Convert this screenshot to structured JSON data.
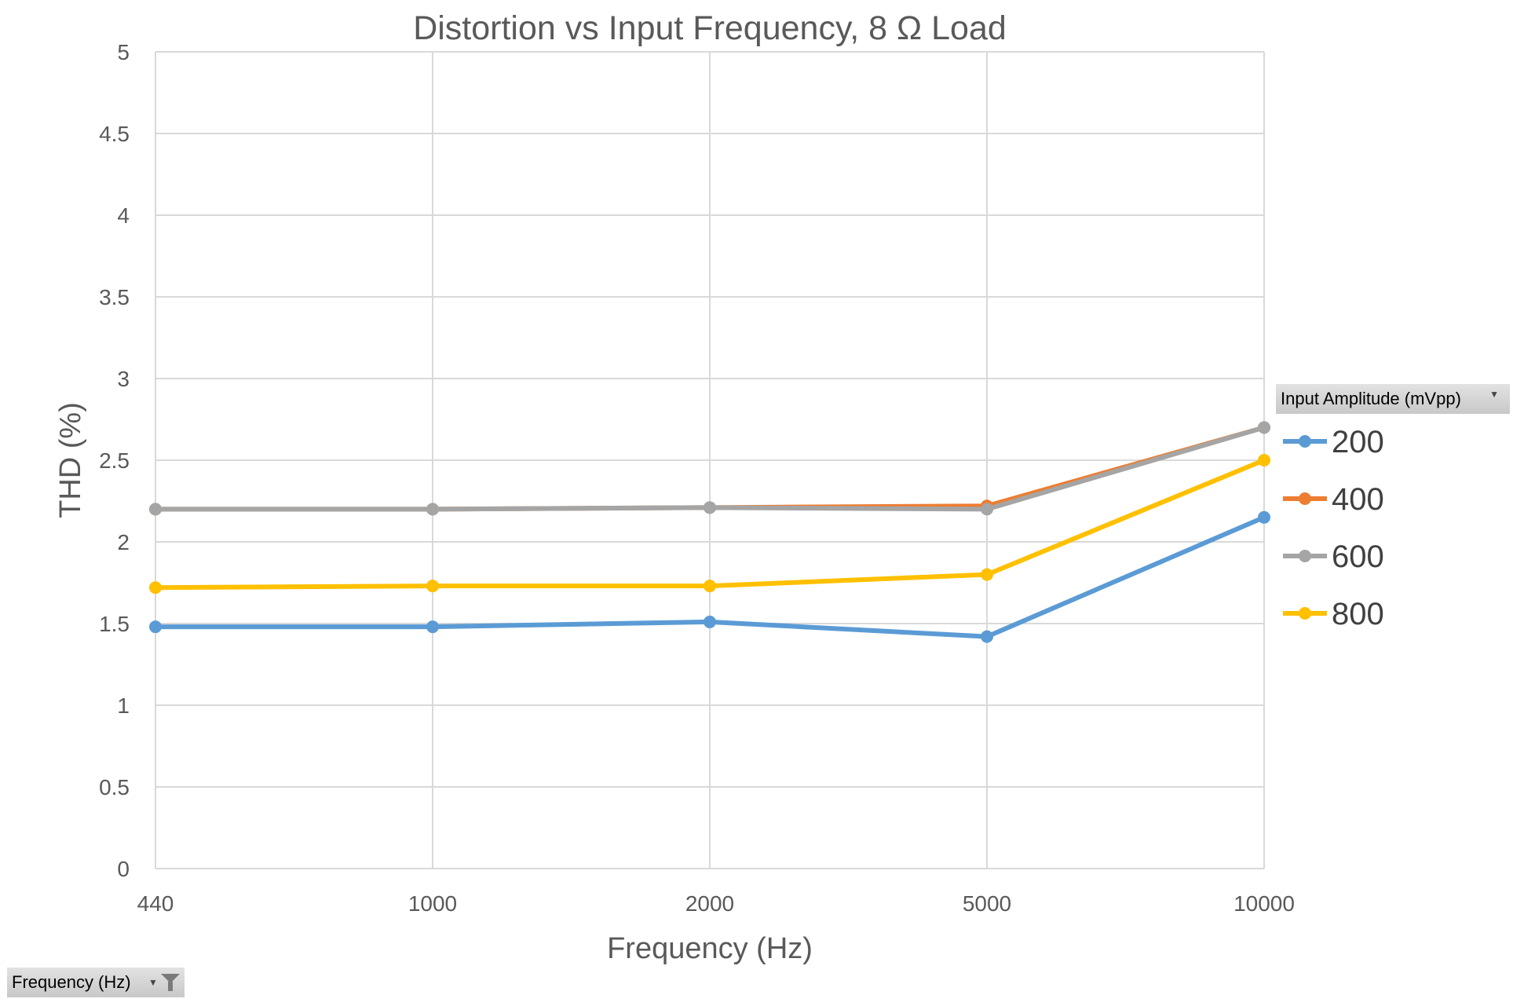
{
  "chart_data": {
    "type": "line",
    "title": "Distortion vs Input Frequency, 8 Ω Load",
    "xlabel": "Frequency (Hz)",
    "ylabel": "THD (%)",
    "categories": [
      "440",
      "1000",
      "2000",
      "5000",
      "10000"
    ],
    "ylim": [
      0,
      5
    ],
    "yticks": [
      "0",
      "0.5",
      "1",
      "1.5",
      "2",
      "2.5",
      "3",
      "3.5",
      "4",
      "4.5",
      "5"
    ],
    "grid": true,
    "legend_title": "Input Amplitude (mVpp)",
    "legend_position": "right",
    "series": [
      {
        "name": "200",
        "color": "#5b9bd5",
        "values": [
          1.48,
          1.48,
          1.51,
          1.42,
          2.15
        ]
      },
      {
        "name": "400",
        "color": "#ed7d31",
        "values": [
          2.2,
          2.2,
          2.21,
          2.22,
          2.7
        ]
      },
      {
        "name": "600",
        "color": "#a5a5a5",
        "values": [
          2.2,
          2.2,
          2.21,
          2.2,
          2.7
        ]
      },
      {
        "name": "800",
        "color": "#ffc000",
        "values": [
          1.72,
          1.73,
          1.73,
          1.8,
          2.5
        ]
      }
    ]
  },
  "field_buttons": {
    "legend_field": "Input Amplitude (mVpp)",
    "axis_field": "Frequency (Hz)"
  }
}
